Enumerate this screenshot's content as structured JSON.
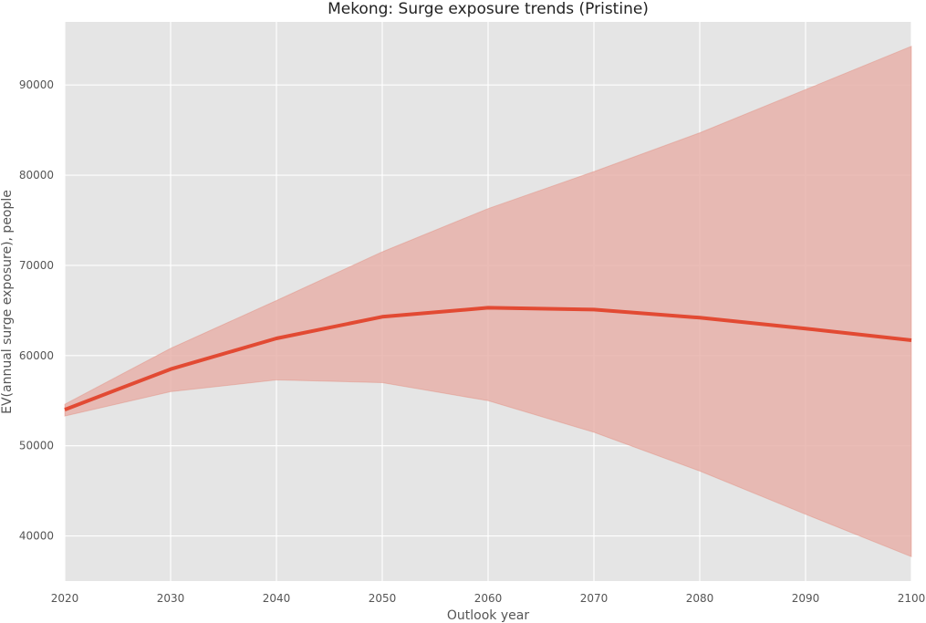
{
  "chart_data": {
    "type": "line",
    "title": "Mekong: Surge exposure trends (Pristine)",
    "xlabel": "Outlook year",
    "ylabel": "EV(annual surge exposure), people",
    "xlim": [
      2020,
      2100
    ],
    "ylim": [
      35000,
      97000
    ],
    "grid": true,
    "x_ticks": [
      2020,
      2030,
      2040,
      2050,
      2060,
      2070,
      2080,
      2090,
      2100
    ],
    "y_ticks": [
      40000,
      50000,
      60000,
      70000,
      80000,
      90000
    ],
    "x": [
      2020,
      2030,
      2040,
      2050,
      2060,
      2070,
      2080,
      2090,
      2100
    ],
    "series": [
      {
        "values": [
          54000,
          58500,
          61900,
          64300,
          65300,
          65100,
          64200,
          63000,
          61700
        ],
        "lower": [
          53300,
          56000,
          57300,
          57000,
          55000,
          51500,
          47200,
          42400,
          37700
        ],
        "upper": [
          54600,
          60800,
          66100,
          71500,
          76300,
          80400,
          84700,
          89500,
          94300
        ]
      }
    ],
    "colors": {
      "line": "#e24a33",
      "band": "#e8b1aa",
      "background": "#e5e5e5",
      "grid": "#ffffff"
    }
  }
}
